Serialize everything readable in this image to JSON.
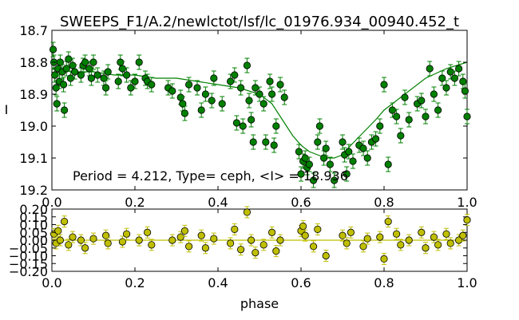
{
  "chart_data": [
    {
      "type": "scatter",
      "title": "SWEEPS_F1/A.2/newlctot/lsf/lc_01976.934_00940.452_t",
      "xlabel": "",
      "ylabel": "I",
      "xlim": [
        0.0,
        1.0
      ],
      "ylim": [
        18.7,
        19.2
      ],
      "y_inverted": true,
      "x_ticks": [
        "0.0",
        "0.2",
        "0.4",
        "0.6",
        "0.8",
        "1.0"
      ],
      "y_ticks": [
        "18.7",
        "18.8",
        "18.9",
        "19.0",
        "19.1",
        "19.2"
      ],
      "annotation": "Period = 4.212, Type= ceph, <I> = 18.936",
      "colors": {
        "points": "#008000",
        "model": "#008000",
        "edge": "#000000"
      },
      "model_line": {
        "x": [
          0.0,
          0.05,
          0.1,
          0.15,
          0.2,
          0.25,
          0.3,
          0.35,
          0.4,
          0.45,
          0.5,
          0.53,
          0.55,
          0.58,
          0.6,
          0.62,
          0.64,
          0.66,
          0.68,
          0.7,
          0.72,
          0.75,
          0.78,
          0.8,
          0.85,
          0.9,
          0.95,
          1.0
        ],
        "y": [
          18.82,
          18.83,
          18.83,
          18.84,
          18.84,
          18.85,
          18.85,
          18.86,
          18.87,
          18.88,
          18.9,
          18.93,
          18.97,
          19.03,
          19.06,
          19.08,
          19.09,
          19.1,
          19.1,
          19.09,
          19.06,
          19.02,
          18.98,
          18.95,
          18.9,
          18.85,
          18.82,
          18.8
        ]
      },
      "series": [
        {
          "x": [
            0.003,
            0.005,
            0.007,
            0.01,
            0.012,
            0.015,
            0.018,
            0.02,
            0.025,
            0.028,
            0.03,
            0.035,
            0.04,
            0.045,
            0.05,
            0.055,
            0.07,
            0.075,
            0.08,
            0.09,
            0.095,
            0.1,
            0.11,
            0.125,
            0.13,
            0.135,
            0.16,
            0.165,
            0.17,
            0.18,
            0.19,
            0.2,
            0.21,
            0.225,
            0.23,
            0.24,
            0.28,
            0.29,
            0.31,
            0.315,
            0.32,
            0.33,
            0.35,
            0.36,
            0.37,
            0.385,
            0.39,
            0.41,
            0.43,
            0.44,
            0.445,
            0.455,
            0.46,
            0.47,
            0.475,
            0.48,
            0.485,
            0.49,
            0.5,
            0.51,
            0.515,
            0.525,
            0.53,
            0.535,
            0.54,
            0.55,
            0.56,
            0.595,
            0.6,
            0.605,
            0.61,
            0.615,
            0.62,
            0.63,
            0.64,
            0.645,
            0.655,
            0.66,
            0.67,
            0.68,
            0.7,
            0.705,
            0.71,
            0.715,
            0.725,
            0.74,
            0.75,
            0.76,
            0.77,
            0.78,
            0.79,
            0.8,
            0.81,
            0.82,
            0.83,
            0.84,
            0.85,
            0.86,
            0.88,
            0.89,
            0.9,
            0.91,
            0.92,
            0.93,
            0.94,
            0.95,
            0.96,
            0.97,
            0.98,
            0.99,
            0.995,
            1.0
          ],
          "y": [
            18.76,
            18.8,
            18.84,
            18.88,
            18.93,
            18.82,
            18.86,
            18.8,
            18.83,
            18.87,
            18.95,
            18.82,
            18.79,
            18.85,
            18.81,
            18.83,
            18.84,
            18.81,
            18.8,
            18.82,
            18.85,
            18.8,
            18.84,
            18.85,
            18.88,
            18.83,
            18.86,
            18.8,
            18.82,
            18.84,
            18.88,
            18.86,
            18.8,
            18.85,
            18.86,
            18.87,
            18.88,
            18.89,
            18.91,
            18.93,
            18.96,
            18.87,
            18.88,
            18.95,
            18.9,
            18.92,
            18.85,
            18.93,
            18.86,
            18.84,
            18.99,
            18.88,
            19.0,
            18.81,
            18.92,
            18.98,
            19.05,
            18.88,
            18.9,
            18.93,
            19.05,
            18.86,
            18.9,
            19.06,
            19.0,
            18.87,
            18.91,
            19.08,
            19.15,
            19.11,
            19.1,
            19.13,
            19.12,
            19.17,
            19.05,
            19.0,
            19.1,
            19.07,
            19.12,
            19.17,
            19.05,
            19.09,
            19.15,
            19.08,
            19.11,
            19.06,
            19.07,
            19.1,
            19.05,
            19.04,
            19.0,
            18.87,
            19.12,
            18.95,
            18.97,
            19.03,
            18.91,
            18.98,
            18.93,
            18.92,
            18.97,
            18.82,
            18.9,
            18.95,
            18.85,
            18.88,
            18.83,
            18.85,
            18.82,
            18.86,
            18.89,
            18.97
          ]
        }
      ]
    },
    {
      "type": "scatter",
      "title": "",
      "xlabel": "phase",
      "ylabel": "",
      "xlim": [
        0.0,
        1.0
      ],
      "ylim": [
        -0.2,
        0.2
      ],
      "x_ticks": [
        "0.0",
        "0.2",
        "0.4",
        "0.6",
        "0.8",
        "1.0"
      ],
      "y_ticks": [
        "0.20",
        "0.15",
        "0.10",
        "0.05",
        "0.00",
        "−0.05",
        "−0.10",
        "−0.15",
        "−0.20"
      ],
      "colors": {
        "points": "#bfbf00",
        "zero_line": "#bfbf00",
        "edge": "#000000"
      },
      "series": [
        {
          "x": [
            0.005,
            0.01,
            0.015,
            0.02,
            0.03,
            0.04,
            0.05,
            0.07,
            0.08,
            0.1,
            0.13,
            0.135,
            0.17,
            0.18,
            0.21,
            0.23,
            0.24,
            0.29,
            0.31,
            0.32,
            0.33,
            0.36,
            0.37,
            0.39,
            0.43,
            0.44,
            0.455,
            0.47,
            0.48,
            0.49,
            0.51,
            0.53,
            0.54,
            0.55,
            0.6,
            0.605,
            0.61,
            0.63,
            0.64,
            0.66,
            0.7,
            0.71,
            0.72,
            0.75,
            0.76,
            0.79,
            0.8,
            0.81,
            0.83,
            0.84,
            0.86,
            0.89,
            0.9,
            0.92,
            0.93,
            0.95,
            0.96,
            0.98,
            0.99,
            1.0
          ],
          "y": [
            0.04,
            -0.02,
            0.06,
            0.0,
            0.12,
            -0.03,
            0.02,
            0.0,
            -0.05,
            0.01,
            0.03,
            -0.02,
            -0.01,
            0.04,
            0.0,
            0.05,
            -0.03,
            0.0,
            0.02,
            0.06,
            -0.04,
            0.03,
            -0.05,
            0.01,
            -0.02,
            0.07,
            -0.06,
            0.18,
            0.0,
            -0.08,
            -0.03,
            0.05,
            -0.07,
            0.0,
            0.06,
            0.09,
            0.03,
            -0.04,
            0.07,
            -0.1,
            0.03,
            -0.02,
            0.05,
            -0.04,
            0.01,
            0.02,
            -0.12,
            0.12,
            0.04,
            -0.03,
            0.0,
            0.05,
            -0.05,
            0.02,
            -0.03,
            0.04,
            -0.02,
            0.0,
            0.03,
            0.13
          ]
        }
      ]
    }
  ]
}
